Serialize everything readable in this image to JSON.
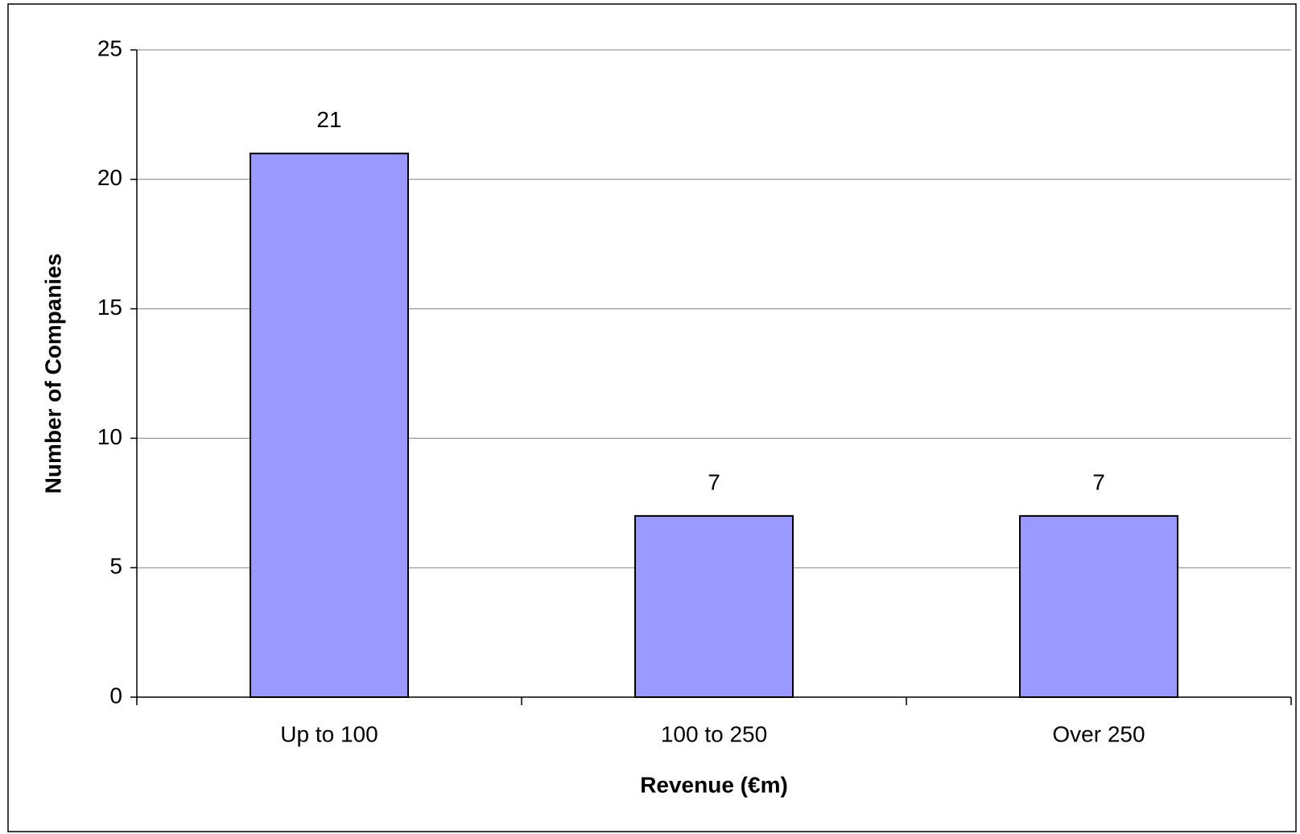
{
  "chart_data": {
    "type": "bar",
    "x_label": "Revenue (€m)",
    "y_label": "Number of Companies",
    "categories": [
      "Up to 100",
      "100 to 250",
      "Over 250"
    ],
    "values": [
      21,
      7,
      7
    ],
    "color": "#9999ff",
    "ylim": [
      0,
      25
    ],
    "yticks": [
      0,
      5,
      10,
      15,
      20,
      25
    ],
    "grid": true,
    "data_labels": true
  }
}
